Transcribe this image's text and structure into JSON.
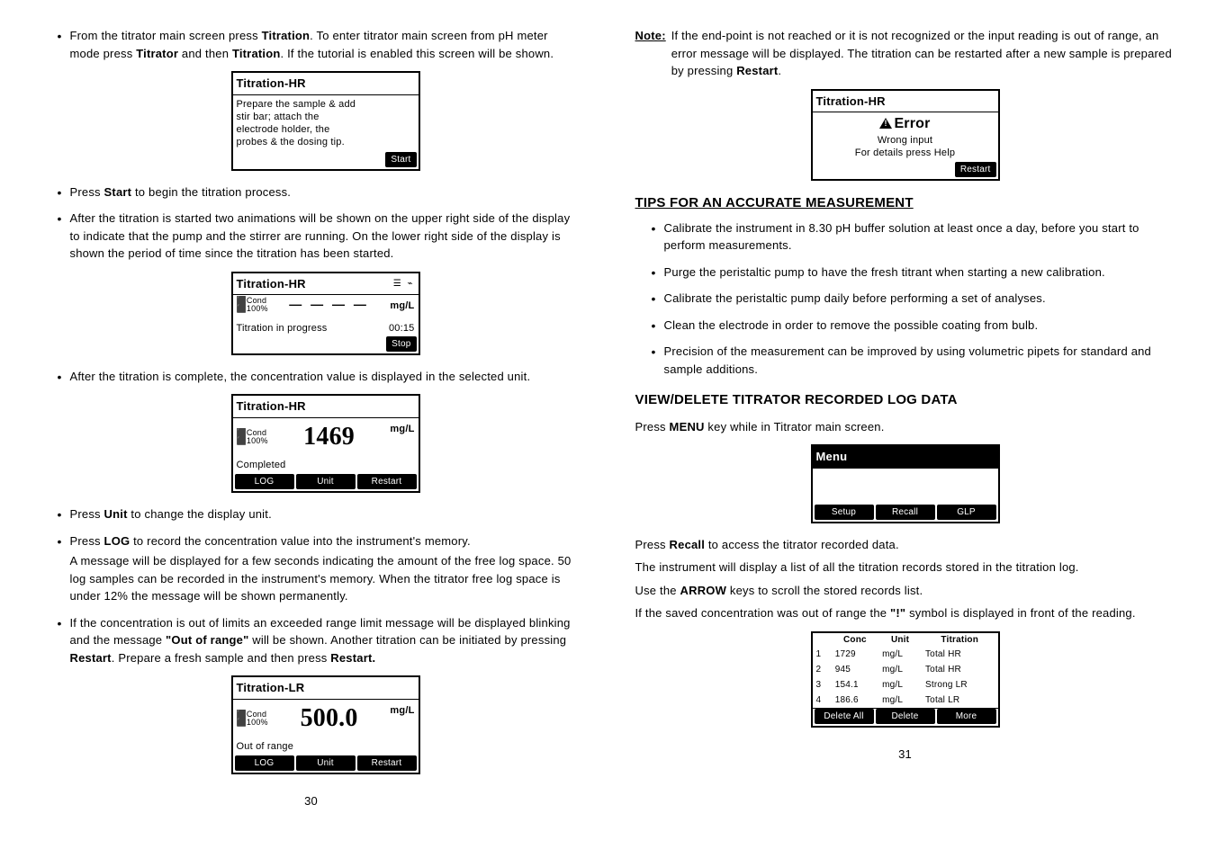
{
  "left": {
    "intro": "From the titrator main screen press ",
    "intro_b1": "Titration",
    "intro_mid": ". To enter titrator main screen from pH meter mode press ",
    "intro_b2": "Titrator",
    "intro_mid2": " and then ",
    "intro_b3": "Titration",
    "intro_end": ". If the tutorial is enabled this screen will be shown.",
    "lcd1": {
      "title": "Titration-HR",
      "line1": "Prepare the sample & add",
      "line2": "stir bar; attach the",
      "line3": "electrode holder, the",
      "line4": "probes & the dosing tip.",
      "btn": "Start"
    },
    "li2a": "Press ",
    "li2b": "Start",
    "li2c": " to begin the titration process.",
    "li3": "After the titration is started two animations will be shown on the upper right side of the display to indicate that the pump and the stirrer are running. On the lower right side of the display is shown the period of time since the titration has been started.",
    "lcd2": {
      "title": "Titration-HR",
      "cond1": "Cond",
      "cond2": "100%",
      "dashes": "— — — —",
      "unit": "mg/L",
      "progress": "Titration in progress",
      "time": "00:15",
      "btn": "Stop",
      "icons": "☰ ⌁"
    },
    "li4": "After the titration is complete, the concentration value is displayed in the selected unit.",
    "lcd3": {
      "title": "Titration-HR",
      "cond1": "Cond",
      "cond2": "100%",
      "val": "1469",
      "unit": "mg/L",
      "status": "Completed",
      "b1": "LOG",
      "b2": "Unit",
      "b3": "Restart"
    },
    "li5a": "Press ",
    "li5b": "Unit",
    "li5c": " to change the display unit.",
    "li6a": "Press ",
    "li6b": "LOG",
    "li6c": " to record the concentration value into the instrument's memory.",
    "li6sub": "A message will be displayed for a few seconds indicating the amount of the free log space. 50 log samples can be recorded in the instrument's memory. When the titrator free log space is under 12% the message will be shown permanently.",
    "li7a": "If the concentration is out of limits an exceeded range limit message will be displayed blinking and the message ",
    "li7b": "\"Out of range\"",
    "li7c": " will be shown. Another titration can be initiated by pressing ",
    "li7d": "Restart",
    "li7e": ". Prepare a fresh sample and then press ",
    "li7f": "Restart.",
    "lcd4": {
      "title": "Titration-LR",
      "cond1": "Cond",
      "cond2": "100%",
      "val": "500.0",
      "unit": "mg/L",
      "status": "Out of range",
      "b1": "LOG",
      "b2": "Unit",
      "b3": "Restart"
    },
    "pagenum": "30"
  },
  "right": {
    "note_label": "Note:",
    "note_text1": "If the end-point is not reached or it is not recognized or the input reading is out of range, an error message will be displayed. The titration can be restarted after a new sample is prepared by pressing ",
    "note_b": "Restart",
    "note_text2": ".",
    "lcd_err": {
      "title": "Titration-HR",
      "err": "Error",
      "l1": "Wrong input",
      "l2": "For details press Help",
      "btn": "Restart"
    },
    "tips_heading": "TIPS FOR AN ACCURATE MEASUREMENT",
    "t1": "Calibrate the instrument in 8.30 pH buffer solution at least once a day, before you start to perform measurements.",
    "t2": "Purge the peristaltic pump to have the fresh titrant when starting a new calibration.",
    "t3": "Calibrate the peristaltic pump daily before performing a set of analyses.",
    "t4": "Clean the electrode in order to remove the possible coating from bulb.",
    "t5": "Precision of the measurement can be improved by using volumetric pipets for standard and sample additions.",
    "vd_heading": "VIEW/DELETE TITRATOR RECORDED LOG DATA",
    "vd1a": "Press ",
    "vd1b": "MENU",
    "vd1c": " key while in Titrator main screen.",
    "lcd_menu": {
      "title": "Menu",
      "b1": "Setup",
      "b2": "Recall",
      "b3": "GLP"
    },
    "vd2a": "Press ",
    "vd2b": "Recall",
    "vd2c": " to access the titrator recorded data.",
    "vd3": "The instrument will display a list of all the titration records stored in the titration log.",
    "vd4a": "Use the ",
    "vd4b": "ARROW",
    "vd4c": " keys to scroll the stored records list.",
    "vd5a": "If the saved concentration was out of range the ",
    "vd5b": "\"!\"",
    "vd5c": " symbol is displayed in front of the reading.",
    "log_table": {
      "h1": "Conc",
      "h2": "Unit",
      "h3": "Titration",
      "rows": [
        {
          "n": "1",
          "c": "1729",
          "u": "mg/L",
          "t": "Total HR",
          "hl": true
        },
        {
          "n": "2",
          "c": "945",
          "u": "mg/L",
          "t": "Total HR",
          "hl": false
        },
        {
          "n": "3",
          "c": "154.1",
          "u": "mg/L",
          "t": "Strong LR",
          "hl": false
        },
        {
          "n": "4",
          "c": "186.6",
          "u": "mg/L",
          "t": "Total LR",
          "hl": false
        }
      ],
      "f1": "Delete All",
      "f2": "Delete",
      "f3": "More"
    },
    "pagenum": "31"
  }
}
